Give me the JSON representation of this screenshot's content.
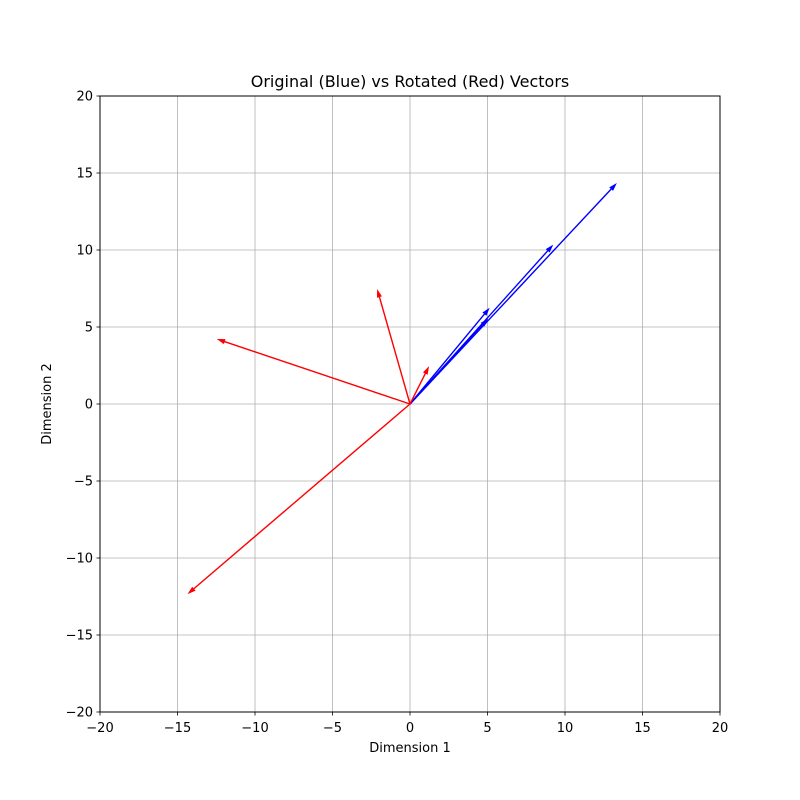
{
  "chart_data": {
    "type": "quiver",
    "title": "Original (Blue) vs Rotated (Red) Vectors",
    "xlabel": "Dimension 1",
    "ylabel": "Dimension 2",
    "xlim": [
      -20,
      20
    ],
    "ylim": [
      -20,
      20
    ],
    "xticks": [
      -20,
      -15,
      -10,
      -5,
      0,
      5,
      10,
      15,
      20
    ],
    "yticks": [
      -20,
      -15,
      -10,
      -5,
      0,
      5,
      10,
      15,
      20
    ],
    "xtick_labels": [
      "−20",
      "−15",
      "−10",
      "−5",
      "0",
      "5",
      "10",
      "15",
      "20"
    ],
    "ytick_labels": [
      "−20",
      "−15",
      "−10",
      "−5",
      "0",
      "5",
      "10",
      "15",
      "20"
    ],
    "grid": true,
    "series": [
      {
        "color": "#0000ff",
        "vectors": [
          {
            "x0": 0,
            "y0": 0,
            "dx": 5.1,
            "dy": 6.2
          },
          {
            "x0": 0,
            "y0": 0,
            "dx": 5.0,
            "dy": 5.5
          },
          {
            "x0": 0,
            "y0": 0,
            "dx": 9.2,
            "dy": 10.3
          },
          {
            "x0": 0,
            "y0": 0,
            "dx": 13.3,
            "dy": 14.3
          }
        ]
      },
      {
        "color": "#ff0000",
        "vectors": [
          {
            "x0": 0,
            "y0": 0,
            "dx": -14.3,
            "dy": -12.3
          },
          {
            "x0": 0,
            "y0": 0,
            "dx": -12.4,
            "dy": 4.2
          },
          {
            "x0": 0,
            "y0": 0,
            "dx": -2.1,
            "dy": 7.4
          },
          {
            "x0": 0,
            "y0": 0,
            "dx": 1.2,
            "dy": 2.4
          }
        ]
      }
    ]
  }
}
